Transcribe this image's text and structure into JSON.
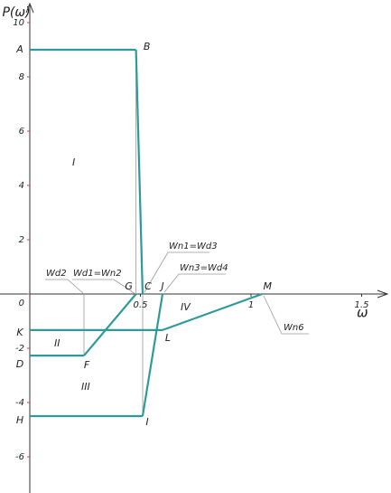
{
  "chart_data": {
    "type": "line",
    "y_label": "P(ω)",
    "x_label": "ω",
    "xlim": [
      0,
      1.6
    ],
    "ylim": [
      -7.3,
      10.7
    ],
    "xticks": [
      0.5,
      1,
      1.5
    ],
    "yticks": [
      10,
      8,
      6,
      4,
      2,
      0,
      -2,
      -4,
      -6
    ],
    "color": "#2e9a9a",
    "segments": [
      {
        "x": [
          0,
          0.48
        ],
        "values": [
          9,
          9
        ]
      },
      {
        "x": [
          0.48,
          0.51
        ],
        "values": [
          9,
          0
        ]
      },
      {
        "x": [
          0,
          0.51
        ],
        "values": [
          -4.5,
          -4.5
        ]
      },
      {
        "x": [
          0.51,
          0.6
        ],
        "values": [
          -4.5,
          0
        ]
      },
      {
        "x": [
          0,
          0.6
        ],
        "values": [
          -1.33,
          -1.33
        ]
      },
      {
        "x": [
          0.6,
          1.05
        ],
        "values": [
          -1.33,
          0
        ]
      },
      {
        "x": [
          0,
          0.245
        ],
        "values": [
          -2.27,
          -2.27
        ]
      },
      {
        "x": [
          0.245,
          0.48
        ],
        "values": [
          -2.27,
          0
        ]
      }
    ],
    "points": [
      {
        "label": "A",
        "x": 0,
        "y": 9
      },
      {
        "label": "B",
        "x": 0.48,
        "y": 9
      },
      {
        "label": "G",
        "x": 0.48,
        "y": 0
      },
      {
        "label": "C",
        "x": 0.51,
        "y": 0
      },
      {
        "label": "J",
        "x": 0.6,
        "y": 0
      },
      {
        "label": "M",
        "x": 1.05,
        "y": 0
      },
      {
        "label": "K",
        "x": 0,
        "y": -1.33
      },
      {
        "label": "L",
        "x": 0.6,
        "y": -1.33
      },
      {
        "label": "D",
        "x": 0,
        "y": -2.27
      },
      {
        "label": "F",
        "x": 0.245,
        "y": -2.27
      },
      {
        "label": "H",
        "x": 0,
        "y": -4.5
      },
      {
        "label": "I",
        "x": 0.51,
        "y": -4.5
      }
    ],
    "regions": [
      "I",
      "II",
      "III",
      "IV"
    ],
    "annotations": [
      "Wd2",
      "Wd1=Wn2",
      "Wn1=Wd3",
      "Wn3=Wd4",
      "Wn6"
    ]
  }
}
